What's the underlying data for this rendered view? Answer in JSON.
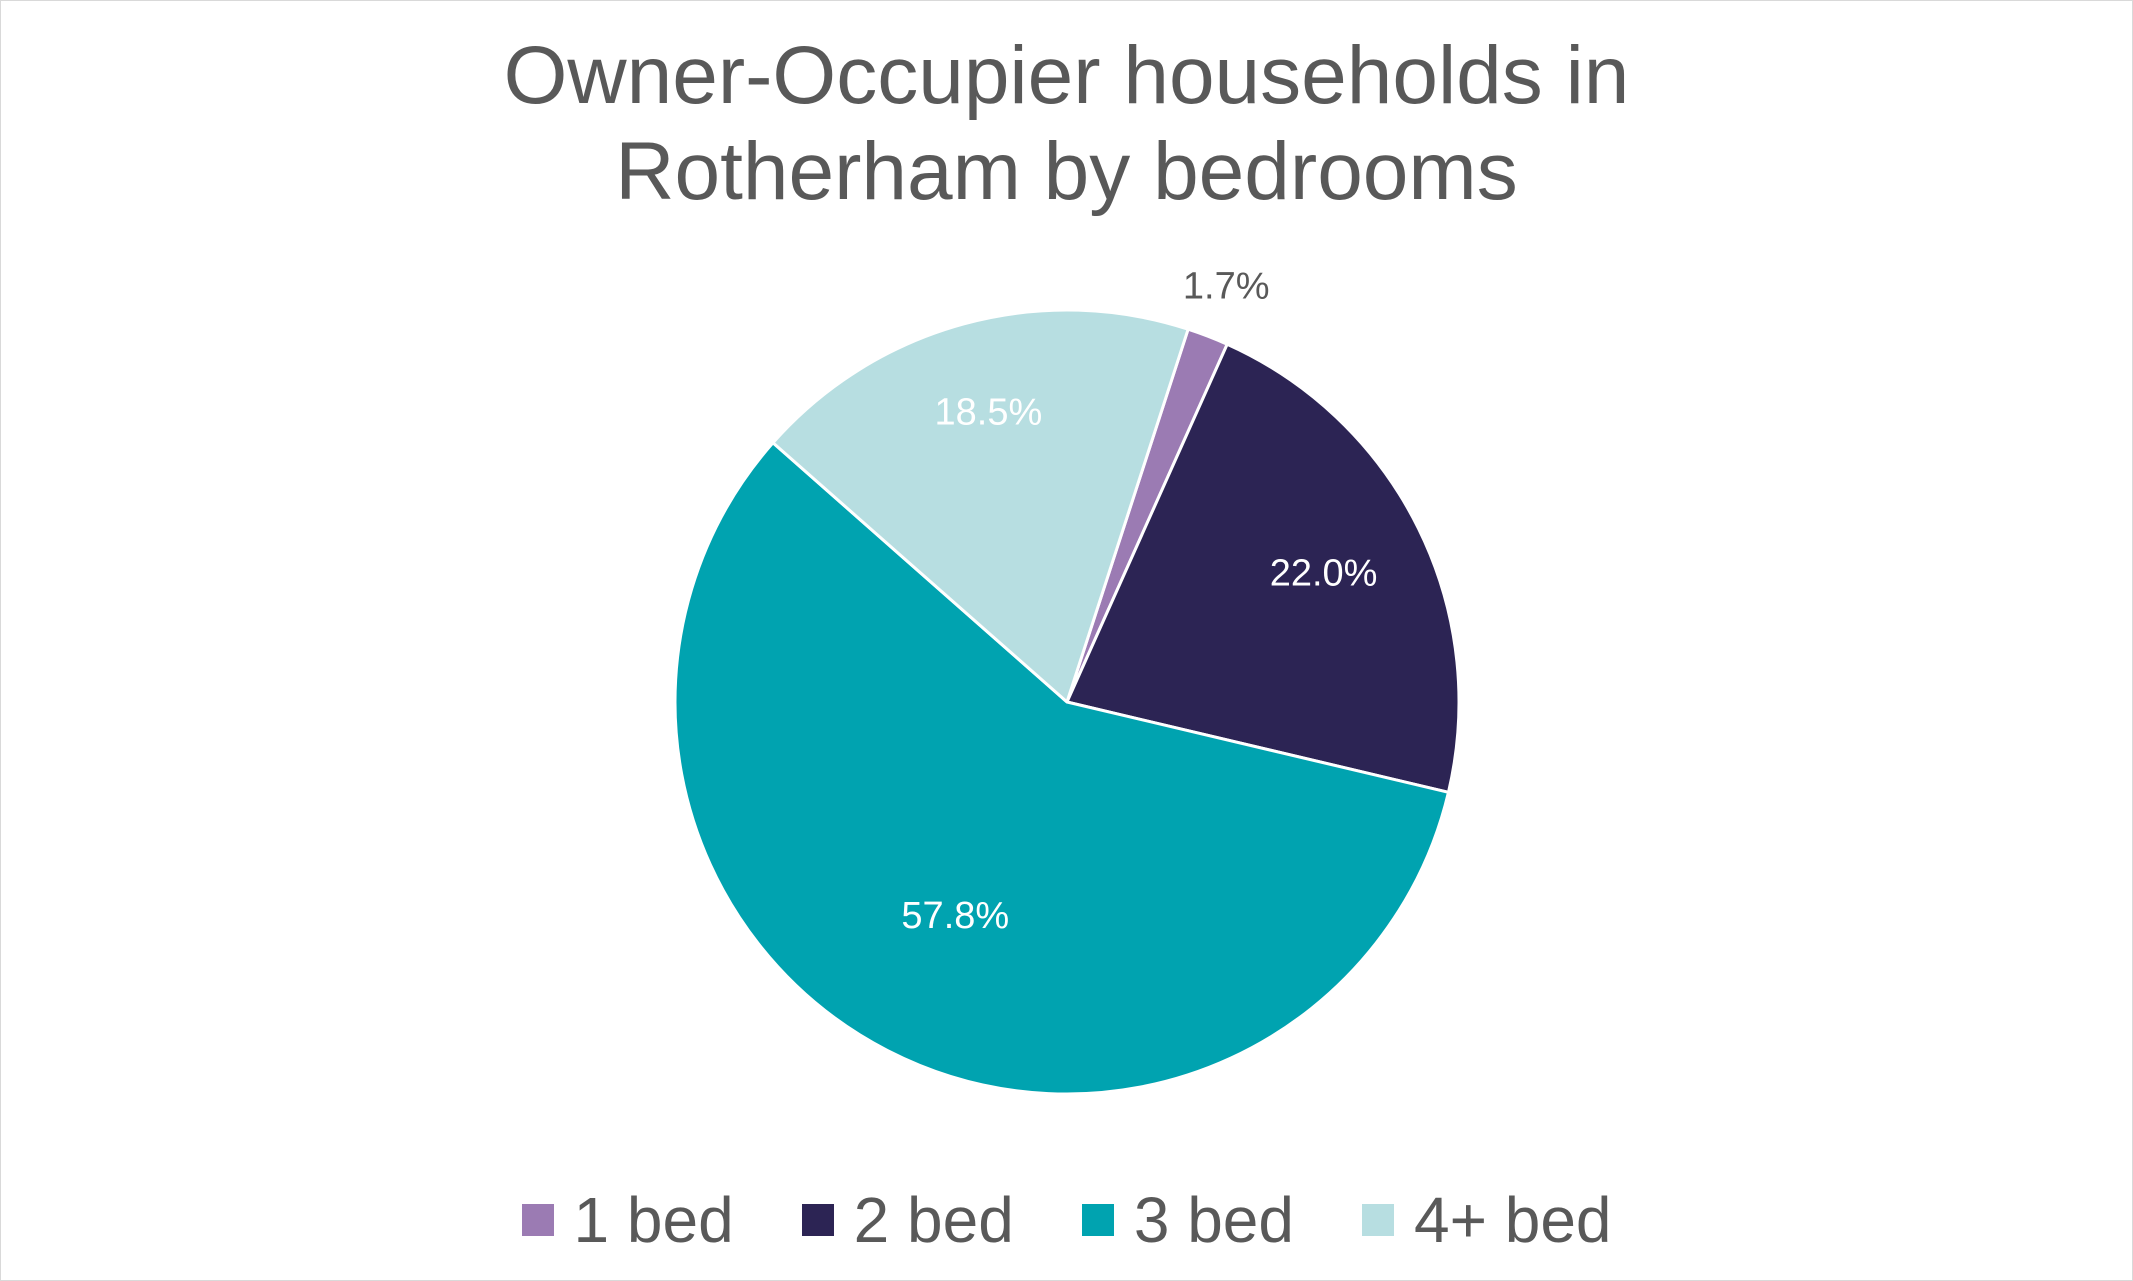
{
  "chart_data": {
    "type": "pie",
    "title_lines": [
      "Owner-Occupier households in",
      "Rotherham by bedrooms"
    ],
    "categories": [
      "1 bed",
      "2 bed",
      "3 bed",
      "4+ bed"
    ],
    "values": [
      1.7,
      22.0,
      57.8,
      18.5
    ],
    "labels": [
      "1.7%",
      "22.0%",
      "57.8%",
      "18.5%"
    ],
    "colors": [
      "#9b7bb3",
      "#2c2454",
      "#00a3b0",
      "#b7dee1"
    ],
    "label_colors": [
      "#595959",
      "#ffffff",
      "#ffffff",
      "#ffffff"
    ],
    "legend_placement": "bottom",
    "start_angle_deg": 18,
    "direction": "clockwise"
  }
}
